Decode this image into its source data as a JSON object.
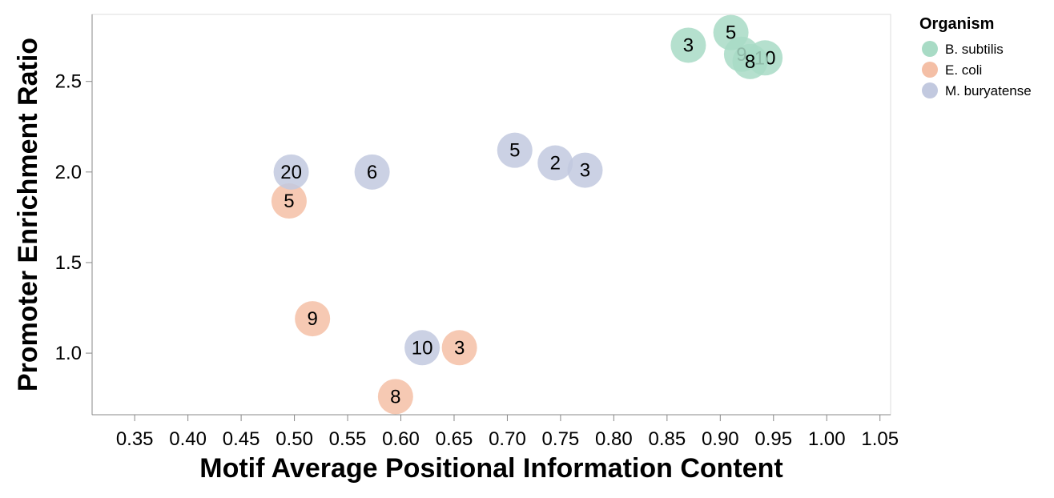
{
  "chart_data": {
    "type": "scatter",
    "title": "",
    "xlabel": "Motif Average Positional Information Content",
    "ylabel": "Promoter Enrichment Ratio",
    "xlim": [
      0.31,
      1.06
    ],
    "ylim": [
      0.66,
      2.87
    ],
    "x_ticks": [
      0.35,
      0.4,
      0.45,
      0.5,
      0.55,
      0.6,
      0.65,
      0.7,
      0.75,
      0.8,
      0.85,
      0.9,
      0.95,
      1.0,
      1.05
    ],
    "y_ticks": [
      1.0,
      1.5,
      2.0,
      2.5
    ],
    "x_tick_labels": [
      "0.35",
      "0.40",
      "0.45",
      "0.50",
      "0.55",
      "0.60",
      "0.65",
      "0.70",
      "0.75",
      "0.80",
      "0.85",
      "0.90",
      "0.95",
      "1.00",
      "1.05"
    ],
    "y_tick_labels": [
      "1.0",
      "1.5",
      "2.0",
      "2.5"
    ],
    "grid": false,
    "legend": {
      "title": "Organism",
      "placement": "top-right",
      "entries": [
        {
          "name": "B. subtilis",
          "color": "#a8dbc5"
        },
        {
          "name": "E. coli",
          "color": "#f4bfa6"
        },
        {
          "name": "M. buryatense",
          "color": "#c2c9df"
        }
      ]
    },
    "series": [
      {
        "name": "B. subtilis",
        "color": "#a8dbc5",
        "points": [
          {
            "x": 0.87,
            "y": 2.7,
            "label": "3"
          },
          {
            "x": 0.91,
            "y": 2.77,
            "label": "5"
          },
          {
            "x": 0.92,
            "y": 2.65,
            "label": "9"
          },
          {
            "x": 0.942,
            "y": 2.63,
            "label": "10"
          },
          {
            "x": 0.928,
            "y": 2.61,
            "label": "8"
          }
        ]
      },
      {
        "name": "E. coli",
        "color": "#f4bfa6",
        "points": [
          {
            "x": 0.495,
            "y": 1.84,
            "label": "5"
          },
          {
            "x": 0.517,
            "y": 1.19,
            "label": "9"
          },
          {
            "x": 0.655,
            "y": 1.03,
            "label": "3"
          },
          {
            "x": 0.595,
            "y": 0.76,
            "label": "8"
          }
        ]
      },
      {
        "name": "M. buryatense",
        "color": "#c2c9df",
        "points": [
          {
            "x": 0.497,
            "y": 2.0,
            "label": "20"
          },
          {
            "x": 0.573,
            "y": 2.0,
            "label": "6"
          },
          {
            "x": 0.707,
            "y": 2.12,
            "label": "5"
          },
          {
            "x": 0.745,
            "y": 2.05,
            "label": "2"
          },
          {
            "x": 0.773,
            "y": 2.01,
            "label": "3"
          },
          {
            "x": 0.62,
            "y": 1.03,
            "label": "10"
          }
        ]
      }
    ]
  }
}
